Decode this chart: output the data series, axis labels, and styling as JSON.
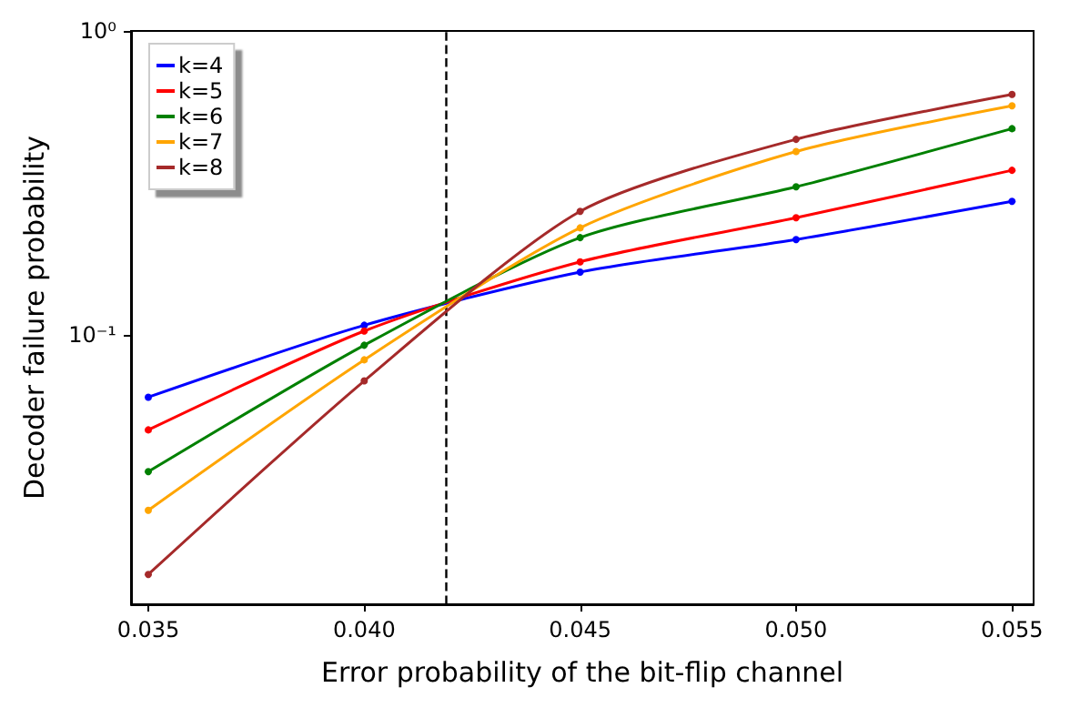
{
  "chart_data": {
    "type": "line",
    "xlabel": "Error probability of the bit-flip channel",
    "ylabel": "Decoder failure probability",
    "x": [
      0.035,
      0.04,
      0.045,
      0.05,
      0.055
    ],
    "series": [
      {
        "name": "k=4",
        "color": "#0000ff",
        "values": [
          0.0624,
          0.1076,
          0.161,
          0.206,
          0.275
        ]
      },
      {
        "name": "k=5",
        "color": "#ff0000",
        "values": [
          0.0487,
          0.103,
          0.174,
          0.243,
          0.348
        ]
      },
      {
        "name": "k=6",
        "color": "#008000",
        "values": [
          0.0355,
          0.0925,
          0.209,
          0.307,
          0.477
        ]
      },
      {
        "name": "k=7",
        "color": "#ffa500",
        "values": [
          0.0265,
          0.0828,
          0.225,
          0.401,
          0.567
        ]
      },
      {
        "name": "k=8",
        "color": "#a52a2a",
        "values": [
          0.0163,
          0.0706,
          0.255,
          0.44,
          0.618
        ]
      }
    ],
    "xlim": [
      0.0346,
      0.0555
    ],
    "xticks": [
      {
        "value": 0.035,
        "label": "0.035"
      },
      {
        "value": 0.04,
        "label": "0.040"
      },
      {
        "value": 0.045,
        "label": "0.045"
      },
      {
        "value": 0.05,
        "label": "0.050"
      },
      {
        "value": 0.055,
        "label": "0.055"
      }
    ],
    "ylim": [
      0.013,
      1
    ],
    "yticks": [
      {
        "value": 0.1,
        "label": "10⁻¹"
      },
      {
        "value": 1,
        "label": "10⁰"
      }
    ],
    "log": "y",
    "grid": false,
    "legend": "top left",
    "marker": "circle",
    "line_style": "solid",
    "ref_lines": [
      {
        "axis": "x",
        "value": 0.0419,
        "color": "#000000",
        "line_style": "dashed"
      }
    ]
  }
}
